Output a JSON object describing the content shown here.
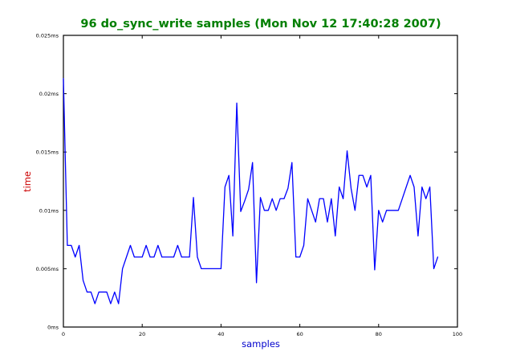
{
  "chart_data": {
    "type": "line",
    "title": "96 do_sync_write samples (Mon Nov 12 17:40:28 2007)",
    "xlabel": "samples",
    "ylabel": "time",
    "xlim": [
      0,
      100
    ],
    "ylim": [
      0,
      0.025
    ],
    "x_ticks": [
      {
        "value": 0,
        "label": "0"
      },
      {
        "value": 20,
        "label": "20"
      },
      {
        "value": 40,
        "label": "40"
      },
      {
        "value": 60,
        "label": "60"
      },
      {
        "value": 80,
        "label": "80"
      },
      {
        "value": 100,
        "label": "100"
      }
    ],
    "y_ticks": [
      {
        "value": 0,
        "label": "0ms"
      },
      {
        "value": 0.005,
        "label": "0.005ms"
      },
      {
        "value": 0.01,
        "label": "0.01ms"
      },
      {
        "value": 0.015,
        "label": "0.015ms"
      },
      {
        "value": 0.02,
        "label": "0.02ms"
      },
      {
        "value": 0.025,
        "label": "0.025ms"
      }
    ],
    "grid": false,
    "legend": "none",
    "colors": {
      "title": "#007f00",
      "xlabel": "#0000cc",
      "ylabel": "#cc0000",
      "line": "#0000ff",
      "axes": "#000000"
    },
    "series": [
      {
        "values": [
          0.0213,
          0.007,
          0.007,
          0.006,
          0.007,
          0.004,
          0.003,
          0.003,
          0.002,
          0.003,
          0.003,
          0.003,
          0.002,
          0.003,
          0.002,
          0.005,
          0.006,
          0.007,
          0.006,
          0.006,
          0.006,
          0.007,
          0.006,
          0.006,
          0.007,
          0.006,
          0.006,
          0.006,
          0.006,
          0.007,
          0.006,
          0.006,
          0.006,
          0.0111,
          0.006,
          0.005,
          0.005,
          0.005,
          0.005,
          0.005,
          0.005,
          0.012,
          0.013,
          0.0078,
          0.0192,
          0.0099,
          0.0108,
          0.0118,
          0.0141,
          0.0038,
          0.0111,
          0.01,
          0.01,
          0.011,
          0.01,
          0.011,
          0.011,
          0.0119,
          0.0141,
          0.006,
          0.006,
          0.007,
          0.011,
          0.01,
          0.009,
          0.011,
          0.011,
          0.009,
          0.011,
          0.0078,
          0.012,
          0.011,
          0.0151,
          0.0119,
          0.01,
          0.013,
          0.013,
          0.012,
          0.013,
          0.0049,
          0.01,
          0.009,
          0.01,
          0.01,
          0.01,
          0.01,
          0.011,
          0.012,
          0.013,
          0.012,
          0.0078,
          0.012,
          0.011,
          0.012,
          0.005,
          0.006
        ]
      }
    ]
  }
}
